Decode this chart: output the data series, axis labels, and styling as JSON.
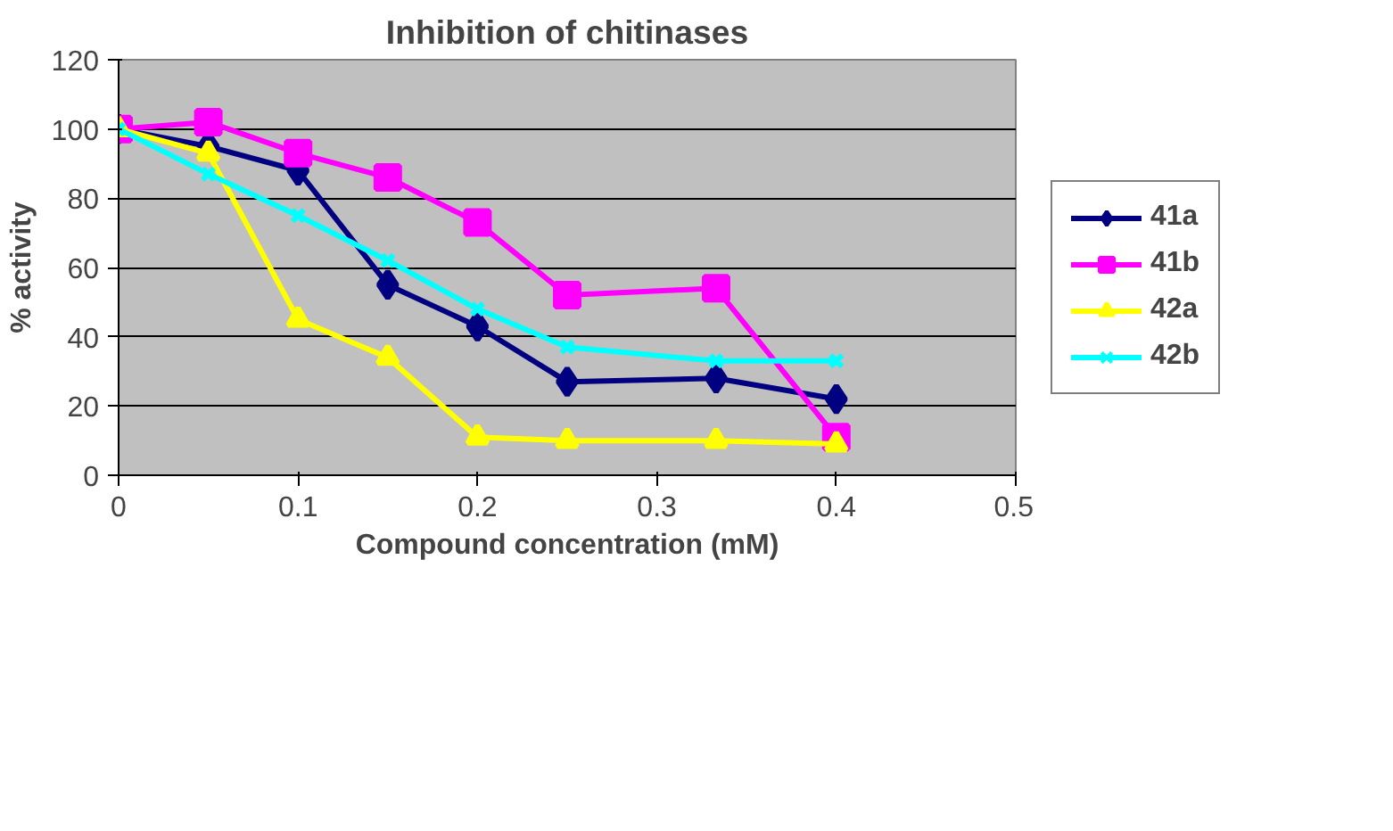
{
  "chart_data": {
    "type": "line",
    "title": "Inhibition of chitinases",
    "xlabel": "Compound concentration (mM)",
    "ylabel": "% activity",
    "x": [
      0,
      0.05,
      0.1,
      0.15,
      0.2,
      0.25,
      0.333,
      0.4
    ],
    "series": [
      {
        "name": "41a",
        "color": "#000080",
        "marker": "diamond",
        "values": [
          100,
          95,
          88,
          55,
          43,
          27,
          28,
          22
        ]
      },
      {
        "name": "41b",
        "color": "#ff00ff",
        "marker": "square",
        "values": [
          100,
          102,
          93,
          86,
          73,
          52,
          54,
          11
        ]
      },
      {
        "name": "42a",
        "color": "#ffff00",
        "marker": "triangle",
        "values": [
          100,
          93,
          45,
          34,
          11,
          10,
          10,
          9
        ]
      },
      {
        "name": "42b",
        "color": "#00ffff",
        "marker": "cross",
        "values": [
          100,
          87,
          75,
          62,
          48,
          37,
          33,
          33
        ]
      }
    ],
    "xlim": [
      0,
      0.5
    ],
    "xticks": [
      0,
      0.1,
      0.2,
      0.3,
      0.4,
      0.5
    ],
    "ylim": [
      0,
      120
    ],
    "yticks": [
      0,
      20,
      40,
      60,
      80,
      100,
      120
    ],
    "grid": "y",
    "legend": "right"
  }
}
